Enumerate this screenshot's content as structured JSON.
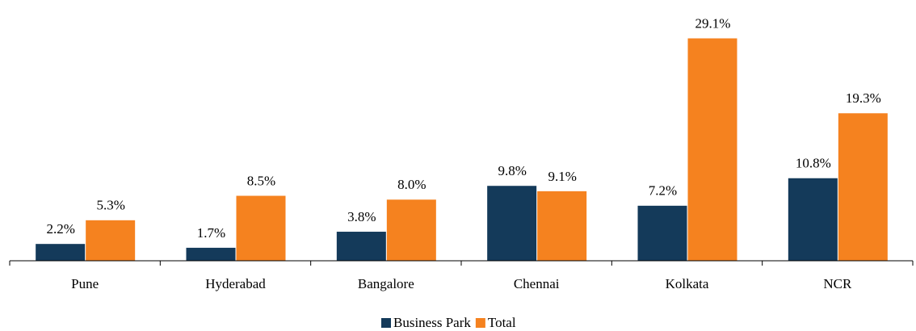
{
  "chart_data": {
    "type": "bar",
    "categories": [
      "Pune",
      "Hyderabad",
      "Bangalore",
      "Chennai",
      "Kolkata",
      "NCR"
    ],
    "series": [
      {
        "name": "Business Park",
        "color": "#143a5a",
        "values": [
          2.2,
          1.7,
          3.8,
          9.8,
          7.2,
          10.8
        ],
        "value_labels": [
          "2.2%",
          "1.7%",
          "3.8%",
          "9.8%",
          "7.2%",
          "10.8%"
        ]
      },
      {
        "name": "Total",
        "color": "#f5821f",
        "values": [
          5.3,
          8.5,
          8.0,
          9.1,
          29.1,
          19.3
        ],
        "value_labels": [
          "5.3%",
          "8.5%",
          "8.0%",
          "9.1%",
          "29.1%",
          "19.3%"
        ]
      }
    ],
    "ylim": [
      0,
      30
    ],
    "legend": "bottom"
  }
}
